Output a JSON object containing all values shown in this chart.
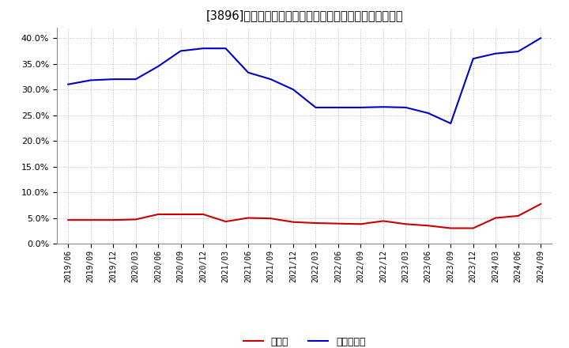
{
  "title": "[3896]　現預金、有利子負債の総資産に対すも比率の推移",
  "x_labels": [
    "2019/06",
    "2019/09",
    "2019/12",
    "2020/03",
    "2020/06",
    "2020/09",
    "2020/12",
    "2021/03",
    "2021/06",
    "2021/09",
    "2021/12",
    "2022/03",
    "2022/06",
    "2022/09",
    "2022/12",
    "2023/03",
    "2023/06",
    "2023/09",
    "2023/12",
    "2024/03",
    "2024/06",
    "2024/09"
  ],
  "cash": [
    0.046,
    0.046,
    0.046,
    0.047,
    0.057,
    0.057,
    0.057,
    0.043,
    0.05,
    0.049,
    0.042,
    0.04,
    0.039,
    0.038,
    0.044,
    0.038,
    0.035,
    0.03,
    0.03,
    0.05,
    0.054,
    0.077
  ],
  "debt": [
    0.31,
    0.318,
    0.32,
    0.32,
    0.345,
    0.375,
    0.38,
    0.38,
    0.333,
    0.32,
    0.3,
    0.265,
    0.265,
    0.265,
    0.266,
    0.265,
    0.254,
    0.234,
    0.36,
    0.37,
    0.374,
    0.4
  ],
  "cash_color": "#cc0000",
  "debt_color": "#0000cc",
  "bg_color": "#ffffff",
  "plot_bg_color": "#ffffff",
  "grid_color": "#bbbbbb",
  "ylim": [
    0.0,
    0.42
  ],
  "yticks": [
    0.0,
    0.05,
    0.1,
    0.15,
    0.2,
    0.25,
    0.3,
    0.35,
    0.4
  ],
  "legend_cash": "現預金",
  "legend_debt": "有利子負債",
  "line_width": 1.5
}
